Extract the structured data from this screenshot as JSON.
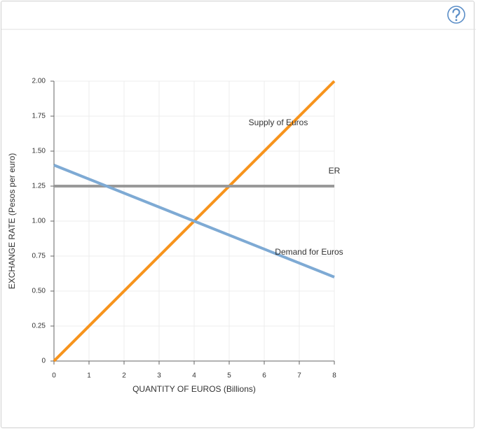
{
  "chart_data": {
    "type": "line",
    "x_label": "QUANTITY OF EUROS (Billions)",
    "y_label": "EXCHANGE RATE (Pesos per euro)",
    "xlim": [
      0,
      8
    ],
    "xticks": [
      0,
      1,
      2,
      3,
      4,
      5,
      6,
      7,
      8
    ],
    "ylim": [
      0,
      2
    ],
    "yticks": [
      0,
      0.25,
      {
        "value": 0.5,
        "label": "0.50"
      },
      0.75,
      {
        "value": 1,
        "label": "1.00"
      },
      1.25,
      {
        "value": 1.5,
        "label": "1.50"
      },
      1.75,
      {
        "value": 2,
        "label": "2.00"
      }
    ],
    "grid": true,
    "series": [
      {
        "name": "Supply of Euros",
        "color": "#f7941d",
        "x": [
          0,
          8
        ],
        "values": [
          0,
          2
        ]
      },
      {
        "name": "ER",
        "color": "#999999",
        "x": [
          0,
          8
        ],
        "values": [
          1.25,
          1.25
        ]
      },
      {
        "name": "Demand for Euros",
        "color": "#7eaad4",
        "x": [
          0,
          8
        ],
        "values": [
          1.4,
          0.6
        ]
      }
    ]
  }
}
